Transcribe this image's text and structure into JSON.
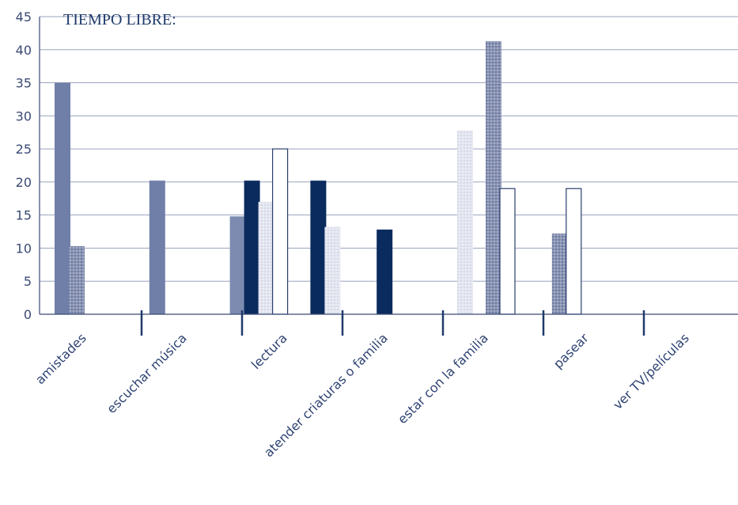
{
  "chart_data": {
    "type": "bar",
    "title": "TIEMPO LIBRE:",
    "categories": [
      "amistades",
      "escuchar música",
      "lectura",
      "atender criaturas o familia",
      "estar con la familia",
      "pasear",
      "ver TV/películas"
    ],
    "series": [
      {
        "values": [
          35,
          0,
          0,
          0,
          0,
          0,
          0
        ],
        "color": "#6f7fa8"
      },
      {
        "values": [
          10.3,
          0,
          0,
          0,
          0,
          0,
          0
        ],
        "color": "#8a94b4",
        "pattern": "dotted"
      },
      {
        "values": [
          0,
          20.2,
          0,
          0,
          0,
          0,
          0
        ],
        "color": "#6f7fa8"
      },
      {
        "values": [
          0,
          0,
          14.8,
          0,
          0,
          0,
          0
        ],
        "color": "#7d8bb0"
      },
      {
        "values": [
          0,
          0,
          20.2,
          20.2,
          12.8,
          0,
          0
        ],
        "color": "#0a2b5e"
      },
      {
        "values": [
          0,
          0,
          17,
          13.2,
          0,
          27.8,
          0
        ],
        "color": "#dfe2ef",
        "pattern": "dotted-light"
      },
      {
        "values": [
          0,
          0,
          25,
          0,
          0,
          0,
          0
        ],
        "color": "#ffffff",
        "outline": true
      },
      {
        "values": [
          0,
          0,
          0,
          0,
          0,
          41.3,
          12.2
        ],
        "color": "#8a94b4",
        "pattern": "dotted"
      },
      {
        "values": [
          0,
          0,
          0,
          0,
          0,
          19,
          19
        ],
        "color": "#ffffff",
        "outline": true
      }
    ],
    "ylim": [
      0,
      45
    ],
    "yticks": [
      0,
      5,
      10,
      15,
      20,
      25,
      30,
      35,
      40,
      45
    ],
    "grid": true
  }
}
